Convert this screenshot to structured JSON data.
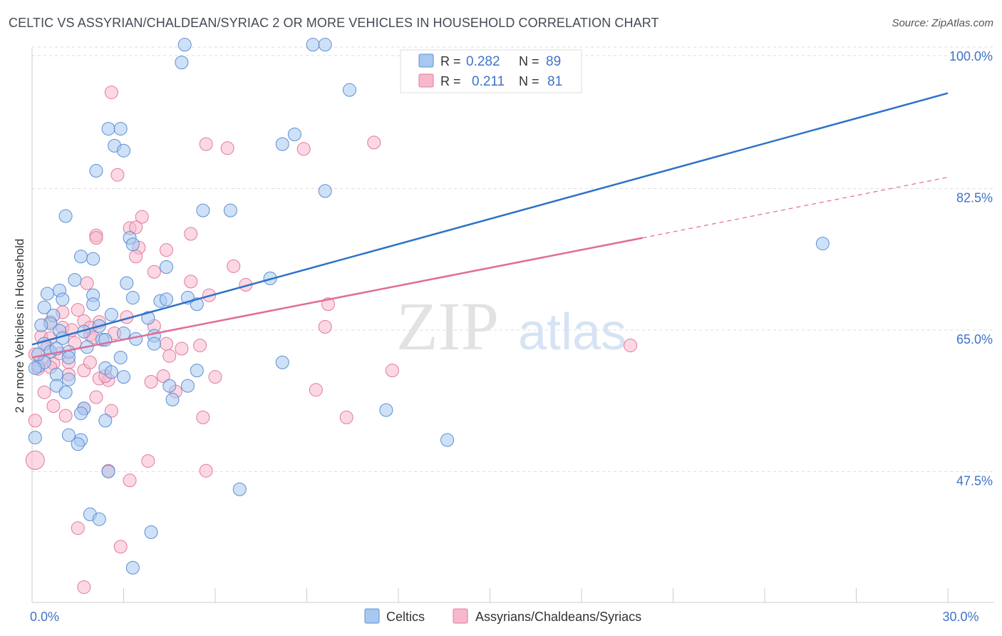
{
  "title": "CELTIC VS ASSYRIAN/CHALDEAN/SYRIAC 2 OR MORE VEHICLES IN HOUSEHOLD CORRELATION CHART",
  "source": "Source: ZipAtlas.com",
  "watermark": {
    "zip": "ZIP",
    "atlas": "atlas"
  },
  "colors": {
    "celtic_fill": "#a7c8f0",
    "celtic_stroke": "#5b8fd4",
    "celtic_line": "#2e72c8",
    "assyrian_fill": "#f7b8cc",
    "assyrian_stroke": "#e27a9c",
    "assyrian_line": "#e06c97",
    "axis_label": "#3f73c9",
    "grid": "#dddddd"
  },
  "legend_top": [
    {
      "r_label": "R = ",
      "r_value": "0.282",
      "n_label": "N = ",
      "n_value": "89"
    },
    {
      "r_label": "R = ",
      "r_value": "0.211",
      "n_label": "N = ",
      "n_value": "81"
    }
  ],
  "chart_data": {
    "type": "scatter",
    "title": "CELTIC VS ASSYRIAN/CHALDEAN/SYRIAC 2 OR MORE VEHICLES IN HOUSEHOLD CORRELATION CHART",
    "xlabel": "",
    "ylabel": "2 or more Vehicles in Household",
    "xlim": [
      0,
      30
    ],
    "ylim": [
      31.3,
      102.3
    ],
    "x_tick_labels": [
      {
        "x": 0,
        "label": "0.0%"
      },
      {
        "x": 30,
        "label": "30.0%"
      }
    ],
    "y_ticks": [
      {
        "y": 47.5,
        "label": "47.5%"
      },
      {
        "y": 65.0,
        "label": "65.0%"
      },
      {
        "y": 82.5,
        "label": "82.5%"
      },
      {
        "y": 100.0,
        "label": "100.0%"
      }
    ],
    "grid": true,
    "legend_position": "bottom-center",
    "series": [
      {
        "name": "Celtics",
        "r": 0.282,
        "n": 89,
        "trend": {
          "x0": 0,
          "y0": 63.2,
          "x1": 30,
          "y1": 94.3,
          "dashed_to": null
        },
        "points": [
          [
            5.0,
            100.3
          ],
          [
            9.2,
            100.3
          ],
          [
            9.6,
            100.3
          ],
          [
            4.9,
            98.1
          ],
          [
            10.4,
            94.7
          ],
          [
            2.5,
            89.9
          ],
          [
            2.9,
            89.9
          ],
          [
            8.2,
            88.0
          ],
          [
            8.6,
            89.2
          ],
          [
            2.7,
            87.8
          ],
          [
            3.0,
            87.2
          ],
          [
            2.1,
            84.7
          ],
          [
            9.6,
            82.2
          ],
          [
            5.6,
            79.8
          ],
          [
            6.5,
            79.8
          ],
          [
            1.1,
            79.1
          ],
          [
            3.2,
            76.4
          ],
          [
            3.3,
            75.6
          ],
          [
            25.9,
            75.7
          ],
          [
            1.6,
            74.1
          ],
          [
            2.0,
            73.8
          ],
          [
            4.4,
            72.8
          ],
          [
            1.4,
            71.2
          ],
          [
            7.8,
            71.4
          ],
          [
            3.1,
            70.8
          ],
          [
            0.9,
            69.9
          ],
          [
            0.5,
            69.5
          ],
          [
            2.0,
            69.3
          ],
          [
            3.3,
            69.0
          ],
          [
            4.2,
            68.6
          ],
          [
            4.4,
            68.8
          ],
          [
            5.1,
            69.0
          ],
          [
            5.4,
            68.2
          ],
          [
            0.4,
            67.8
          ],
          [
            2.0,
            68.2
          ],
          [
            1.0,
            68.8
          ],
          [
            0.7,
            66.8
          ],
          [
            2.6,
            66.9
          ],
          [
            3.8,
            66.5
          ],
          [
            0.6,
            65.8
          ],
          [
            0.3,
            65.6
          ],
          [
            0.9,
            64.9
          ],
          [
            1.7,
            64.8
          ],
          [
            3.0,
            64.6
          ],
          [
            2.3,
            63.8
          ],
          [
            2.4,
            63.8
          ],
          [
            4.0,
            64.3
          ],
          [
            4.0,
            63.3
          ],
          [
            0.4,
            63.3
          ],
          [
            0.6,
            62.3
          ],
          [
            1.2,
            62.3
          ],
          [
            1.2,
            61.6
          ],
          [
            1.8,
            62.9
          ],
          [
            2.9,
            61.6
          ],
          [
            0.2,
            60.5
          ],
          [
            0.4,
            61.0
          ],
          [
            0.1,
            60.3
          ],
          [
            2.4,
            60.3
          ],
          [
            2.6,
            59.8
          ],
          [
            3.0,
            59.2
          ],
          [
            0.8,
            59.5
          ],
          [
            1.2,
            58.9
          ],
          [
            0.8,
            58.1
          ],
          [
            5.4,
            60.0
          ],
          [
            4.5,
            58.1
          ],
          [
            8.2,
            61.0
          ],
          [
            5.1,
            58.1
          ],
          [
            1.1,
            57.3
          ],
          [
            4.6,
            56.4
          ],
          [
            1.7,
            55.3
          ],
          [
            1.6,
            54.7
          ],
          [
            2.4,
            53.8
          ],
          [
            11.6,
            55.1
          ],
          [
            1.2,
            52.0
          ],
          [
            1.6,
            51.4
          ],
          [
            1.5,
            50.9
          ],
          [
            13.6,
            51.4
          ],
          [
            0.1,
            51.7
          ],
          [
            2.5,
            47.5
          ],
          [
            6.8,
            45.3
          ],
          [
            1.9,
            42.2
          ],
          [
            2.2,
            41.6
          ],
          [
            3.9,
            40.0
          ],
          [
            3.3,
            35.6
          ],
          [
            0.2,
            62.0
          ],
          [
            1.0,
            64.0
          ],
          [
            3.4,
            63.9
          ],
          [
            2.2,
            65.5
          ],
          [
            0.8,
            62.7
          ]
        ],
        "sizes": {
          "0,51.7": 36
        }
      },
      {
        "name": "Assyrians/Chaldeans/Syriacs",
        "r": 0.211,
        "n": 81,
        "trend": {
          "x0": 0,
          "y0": 61.6,
          "x1": 20.0,
          "y1": 76.4,
          "dashed_to": {
            "x": 30,
            "y": 83.9
          }
        },
        "points": [
          [
            2.6,
            94.4
          ],
          [
            5.7,
            88.0
          ],
          [
            6.4,
            87.5
          ],
          [
            8.9,
            87.4
          ],
          [
            11.2,
            88.2
          ],
          [
            2.8,
            84.2
          ],
          [
            3.6,
            79.0
          ],
          [
            3.2,
            77.6
          ],
          [
            3.4,
            77.7
          ],
          [
            2.1,
            76.7
          ],
          [
            2.1,
            76.4
          ],
          [
            5.2,
            76.9
          ],
          [
            3.5,
            75.2
          ],
          [
            4.4,
            74.9
          ],
          [
            3.4,
            74.1
          ],
          [
            6.6,
            72.9
          ],
          [
            4.0,
            72.2
          ],
          [
            1.8,
            70.8
          ],
          [
            5.2,
            71.0
          ],
          [
            7.0,
            70.6
          ],
          [
            5.8,
            69.3
          ],
          [
            9.7,
            68.2
          ],
          [
            1.5,
            67.5
          ],
          [
            1.0,
            67.2
          ],
          [
            2.2,
            66.0
          ],
          [
            1.7,
            66.1
          ],
          [
            0.6,
            66.0
          ],
          [
            4.0,
            65.5
          ],
          [
            1.0,
            65.3
          ],
          [
            1.3,
            65.0
          ],
          [
            9.6,
            65.4
          ],
          [
            2.7,
            64.6
          ],
          [
            0.3,
            64.2
          ],
          [
            0.6,
            64.0
          ],
          [
            1.9,
            64.4
          ],
          [
            4.4,
            63.3
          ],
          [
            5.5,
            63.1
          ],
          [
            4.9,
            62.7
          ],
          [
            19.6,
            63.1
          ],
          [
            0.1,
            62.0
          ],
          [
            0.4,
            61.2
          ],
          [
            0.7,
            60.9
          ],
          [
            1.2,
            61.0
          ],
          [
            0.2,
            60.2
          ],
          [
            1.7,
            60.0
          ],
          [
            11.8,
            60.0
          ],
          [
            0.6,
            60.4
          ],
          [
            1.2,
            59.5
          ],
          [
            2.2,
            59.0
          ],
          [
            2.5,
            58.8
          ],
          [
            4.3,
            59.3
          ],
          [
            6.0,
            59.2
          ],
          [
            3.9,
            58.6
          ],
          [
            9.3,
            57.6
          ],
          [
            0.4,
            57.3
          ],
          [
            2.1,
            56.7
          ],
          [
            4.7,
            57.4
          ],
          [
            0.7,
            55.6
          ],
          [
            1.7,
            55.3
          ],
          [
            2.6,
            55.0
          ],
          [
            5.6,
            54.2
          ],
          [
            1.1,
            54.4
          ],
          [
            10.3,
            54.2
          ],
          [
            0.1,
            53.8
          ],
          [
            3.8,
            48.8
          ],
          [
            5.7,
            47.6
          ],
          [
            2.5,
            47.6
          ],
          [
            3.2,
            46.4
          ],
          [
            1.5,
            40.5
          ],
          [
            2.9,
            38.2
          ],
          [
            1.7,
            33.2
          ],
          [
            0.1,
            48.9
          ],
          [
            1.9,
            65.3
          ],
          [
            1.4,
            63.4
          ],
          [
            2.0,
            64.1
          ],
          [
            0.9,
            62.1
          ],
          [
            3.1,
            66.6
          ],
          [
            1.9,
            61.0
          ],
          [
            4.5,
            61.8
          ],
          [
            2.4,
            59.3
          ],
          [
            0.5,
            62.9
          ]
        ],
        "sizes": {
          "0.1,48.9": 26
        }
      }
    ]
  },
  "legend_bottom": [
    {
      "label": "Celtics"
    },
    {
      "label": "Assyrians/Chaldeans/Syriacs"
    }
  ]
}
